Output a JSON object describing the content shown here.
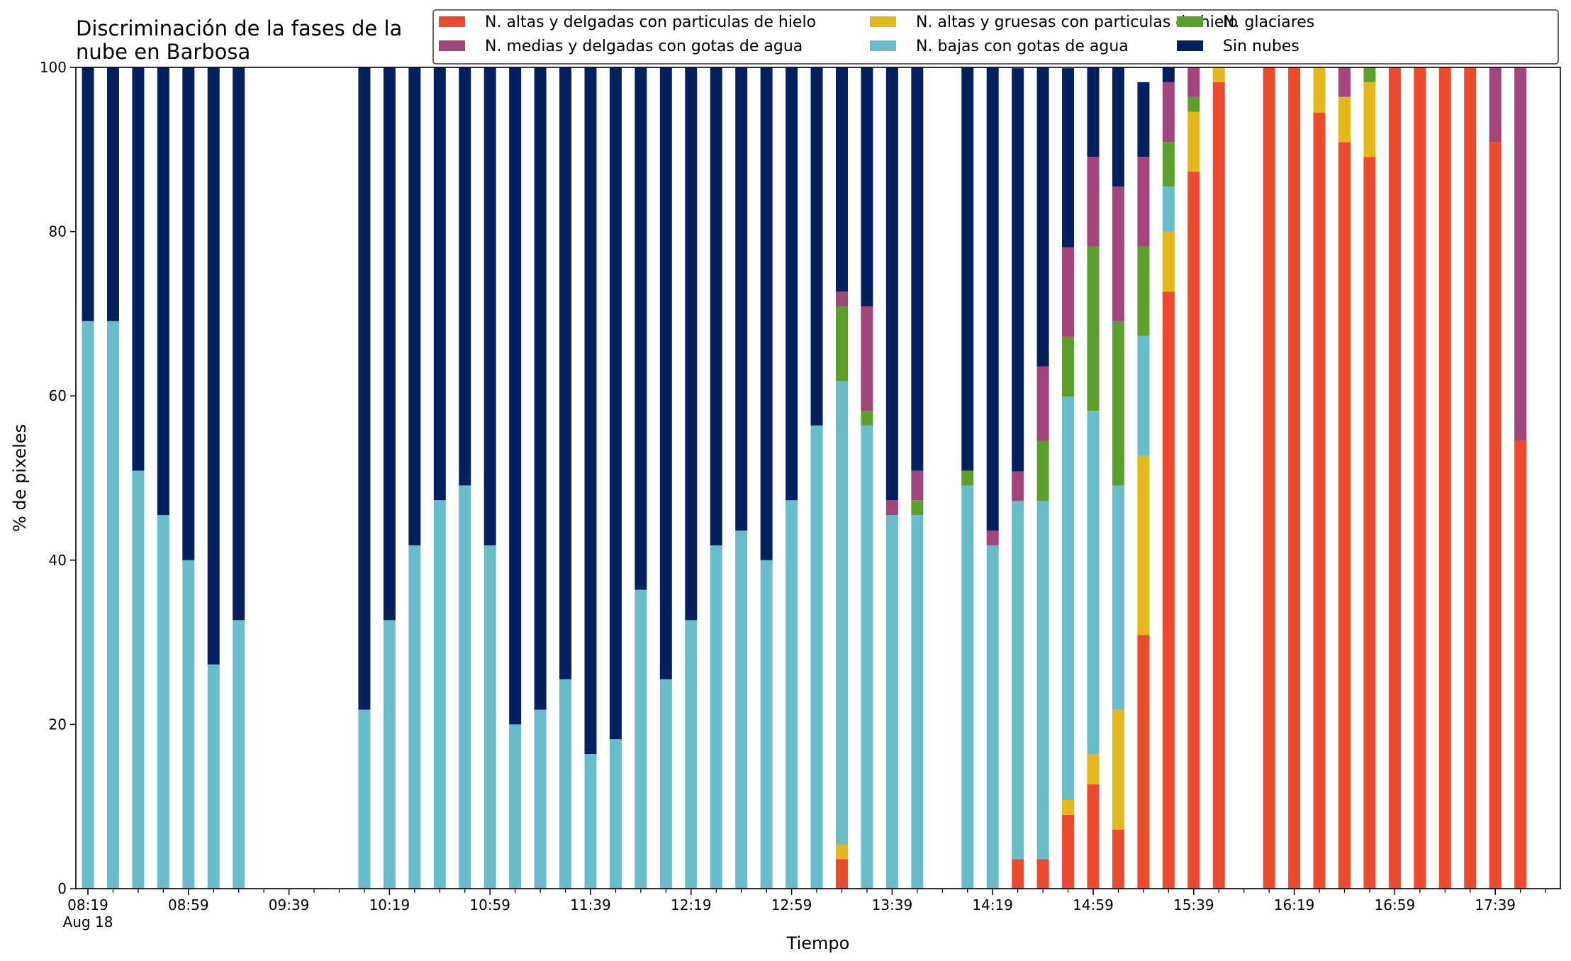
{
  "chart_data": {
    "type": "bar",
    "stacked": true,
    "title_lines": [
      "Discriminación de la fases de la",
      "nube en Barbosa"
    ],
    "xlabel": "Tiempo",
    "ylabel": "% de pixeles",
    "ylim": [
      0,
      100
    ],
    "yticks": [
      0,
      20,
      40,
      60,
      80,
      100
    ],
    "xtick_labels": [
      "08:19",
      "08:59",
      "09:39",
      "10:19",
      "10:59",
      "11:39",
      "12:19",
      "12:59",
      "13:39",
      "14:19",
      "14:59",
      "15:39",
      "16:19",
      "16:59",
      "17:39"
    ],
    "x_sublabel": "Aug 18",
    "grid": false,
    "legend_position": "top-right",
    "legend_order": [
      "altas_delgadas",
      "medias_delgadas",
      "altas_gruesas",
      "bajas",
      "glaciares",
      "sin_nubes"
    ],
    "stack_order": [
      "altas_delgadas",
      "altas_gruesas",
      "bajas",
      "glaciares",
      "medias_delgadas",
      "sin_nubes"
    ],
    "series": [
      {
        "key": "altas_delgadas",
        "name": "N. altas y delgadas con particulas de hielo",
        "color": "#ee4a2c",
        "values": [
          0,
          0,
          0,
          0,
          0,
          0,
          0,
          null,
          null,
          null,
          null,
          0,
          0,
          0,
          0,
          0,
          0,
          0,
          0,
          0,
          0,
          0,
          0,
          0,
          0,
          0,
          0,
          0,
          0,
          0,
          3.6,
          0,
          0,
          0,
          null,
          0,
          0,
          3.6,
          3.6,
          9.0,
          12.7,
          7.2,
          30.9,
          72.7,
          87.3,
          98.2,
          null,
          100,
          100,
          94.5,
          90.9,
          89.1,
          100,
          100,
          100,
          100,
          90.9,
          54.5
        ]
      },
      {
        "key": "altas_gruesas",
        "name": "N. altas y gruesas con particulas de hielo",
        "color": "#e6b718",
        "values": [
          0,
          0,
          0,
          0,
          0,
          0,
          0,
          null,
          null,
          null,
          null,
          0,
          0,
          0,
          0,
          0,
          0,
          0,
          0,
          0,
          0,
          0,
          0,
          0,
          0,
          0,
          0,
          0,
          0,
          0,
          1.8,
          0,
          0,
          0,
          null,
          0,
          0,
          0,
          0,
          1.8,
          3.7,
          14.6,
          21.8,
          7.3,
          7.3,
          1.8,
          null,
          0,
          0,
          5.5,
          5.5,
          9.1,
          0,
          0,
          0,
          0,
          0,
          0
        ]
      },
      {
        "key": "bajas",
        "name": "N. bajas con gotas de agua",
        "color": "#67bdc9",
        "values": [
          69.1,
          69.1,
          50.9,
          45.5,
          40.0,
          27.3,
          32.7,
          null,
          null,
          null,
          null,
          21.8,
          32.7,
          41.8,
          47.3,
          49.1,
          41.8,
          20.0,
          21.8,
          25.5,
          16.4,
          18.2,
          36.4,
          25.5,
          32.7,
          41.8,
          43.6,
          40.0,
          47.3,
          56.4,
          56.4,
          56.4,
          45.5,
          45.5,
          null,
          49.1,
          41.8,
          43.6,
          43.6,
          49.1,
          41.8,
          27.3,
          14.6,
          5.5,
          0,
          0,
          null,
          0,
          0,
          0,
          0,
          0,
          0,
          0,
          0,
          0,
          0,
          0
        ]
      },
      {
        "key": "glaciares",
        "name": "N. glaciares",
        "color": "#5ca02c",
        "values": [
          0,
          0,
          0,
          0,
          0,
          0,
          0,
          null,
          null,
          null,
          null,
          0,
          0,
          0,
          0,
          0,
          0,
          0,
          0,
          0,
          0,
          0,
          0,
          0,
          0,
          0,
          0,
          0,
          0,
          0,
          9.1,
          1.8,
          0,
          1.8,
          null,
          1.8,
          0,
          0,
          7.3,
          7.3,
          20.0,
          20.0,
          10.9,
          5.4,
          1.8,
          0,
          null,
          0,
          0,
          0,
          0,
          1.8,
          0,
          0,
          0,
          0,
          0,
          0
        ]
      },
      {
        "key": "medias_delgadas",
        "name": "N. medias y delgadas con gotas de agua",
        "color": "#a3457a",
        "values": [
          0,
          0,
          0,
          0,
          0,
          0,
          0,
          null,
          null,
          null,
          null,
          0,
          0,
          0,
          0,
          0,
          0,
          0,
          0,
          0,
          0,
          0,
          0,
          0,
          0,
          0,
          0,
          0,
          0,
          0,
          1.8,
          12.7,
          1.8,
          3.6,
          null,
          0,
          1.8,
          3.6,
          9.1,
          10.9,
          10.9,
          16.4,
          10.9,
          7.3,
          3.6,
          0,
          null,
          0,
          0,
          0,
          3.6,
          0,
          0,
          0,
          0,
          0,
          9.1,
          45.5
        ]
      },
      {
        "key": "sin_nubes",
        "name": "Sin nubes",
        "color": "#03215f",
        "values": [
          30.9,
          30.9,
          49.1,
          54.5,
          60.0,
          72.7,
          67.3,
          null,
          null,
          null,
          null,
          78.2,
          67.3,
          58.2,
          52.7,
          50.9,
          58.2,
          80.0,
          78.2,
          74.5,
          83.6,
          81.8,
          63.6,
          74.5,
          67.3,
          58.2,
          56.4,
          60.0,
          52.7,
          43.6,
          27.3,
          29.1,
          52.7,
          49.1,
          null,
          49.1,
          56.4,
          49.1,
          36.4,
          21.8,
          10.9,
          14.5,
          9.1,
          1.8,
          0,
          0,
          null,
          0,
          0,
          0,
          0,
          0,
          0,
          0,
          0,
          0,
          0,
          0
        ]
      }
    ]
  }
}
